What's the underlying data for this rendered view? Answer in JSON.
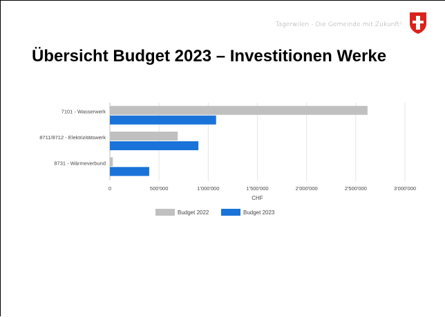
{
  "slide": {
    "tagline": "Tägerwilen - Die Gemeinde mit Zukunft!",
    "title": "Übersicht Budget 2023 – Investitionen Werke",
    "crest_icon": "municipal-coat-of-arms-icon"
  },
  "colors": {
    "budget_2022": "#c0c0c0",
    "budget_2023": "#1a73d8",
    "grid": "#e4e4e4",
    "label": "#444444",
    "crest_red": "#d9231c"
  },
  "chart_data": {
    "type": "bar",
    "orientation": "horizontal",
    "categories": [
      "7101 - Wasserwerk",
      "8711/8712 - Elektrizitätswerk",
      "8731 - Wärmeverbund"
    ],
    "series": [
      {
        "name": "Budget 2022",
        "values": [
          2620000,
          690000,
          30000
        ]
      },
      {
        "name": "Budget 2023",
        "values": [
          1080000,
          900000,
          400000
        ]
      }
    ],
    "xlabel": "CHF",
    "ylabel": "",
    "xlim": [
      0,
      3000000
    ],
    "xticks": [
      0,
      500000,
      1000000,
      1500000,
      2000000,
      2500000,
      3000000
    ],
    "xtick_labels": [
      "0",
      "500'000",
      "1'000'000",
      "1'500'000",
      "2'000'000",
      "2'500'000",
      "3'000'000"
    ],
    "grid": true,
    "legend_position": "bottom"
  }
}
